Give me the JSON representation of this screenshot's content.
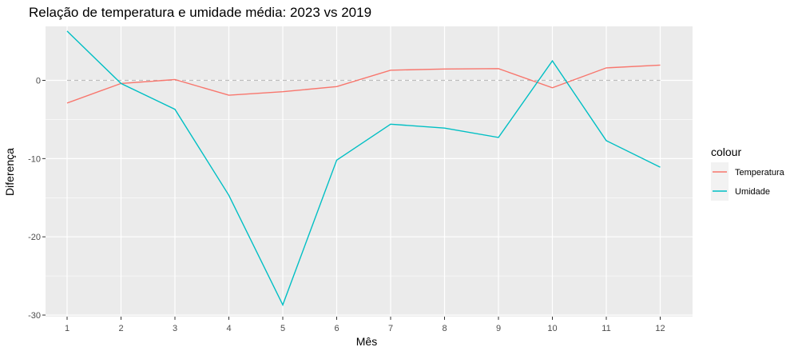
{
  "chart_data": {
    "type": "line",
    "title": "Relação de temperatura e umidade média: 2023 vs 2019",
    "xlabel": "Mês",
    "ylabel": "Diferença",
    "categories": [
      1,
      2,
      3,
      4,
      5,
      6,
      7,
      8,
      9,
      10,
      11,
      12
    ],
    "x_ticks": [
      "1",
      "2",
      "3",
      "4",
      "5",
      "6",
      "7",
      "8",
      "9",
      "10",
      "11",
      "12"
    ],
    "y_ticks": [
      {
        "value": 0,
        "label": "0"
      },
      {
        "value": -10,
        "label": "-10"
      },
      {
        "value": -20,
        "label": "-20"
      },
      {
        "value": -30,
        "label": "-30"
      }
    ],
    "ylim": [
      -30.2,
      6.9
    ],
    "xlim": [
      0.6,
      12.6
    ],
    "reference_line": {
      "y": 0,
      "style": "dashed"
    },
    "grid": true,
    "legend": {
      "title": "colour",
      "placement": "right"
    },
    "series": [
      {
        "name": "Temperatura",
        "color": "#F8766D",
        "values": [
          -2.9,
          -0.4,
          0.1,
          -1.9,
          -1.45,
          -0.8,
          1.3,
          1.45,
          1.5,
          -0.95,
          1.6,
          1.95
        ]
      },
      {
        "name": "Umidade",
        "color": "#00BFC4",
        "values": [
          6.3,
          -0.4,
          -3.7,
          -14.7,
          -28.7,
          -10.2,
          -5.6,
          -6.1,
          -7.3,
          2.5,
          -7.7,
          -11.1
        ]
      }
    ],
    "panel_color": "#EBEBEB",
    "grid_color": "#FFFFFF"
  }
}
